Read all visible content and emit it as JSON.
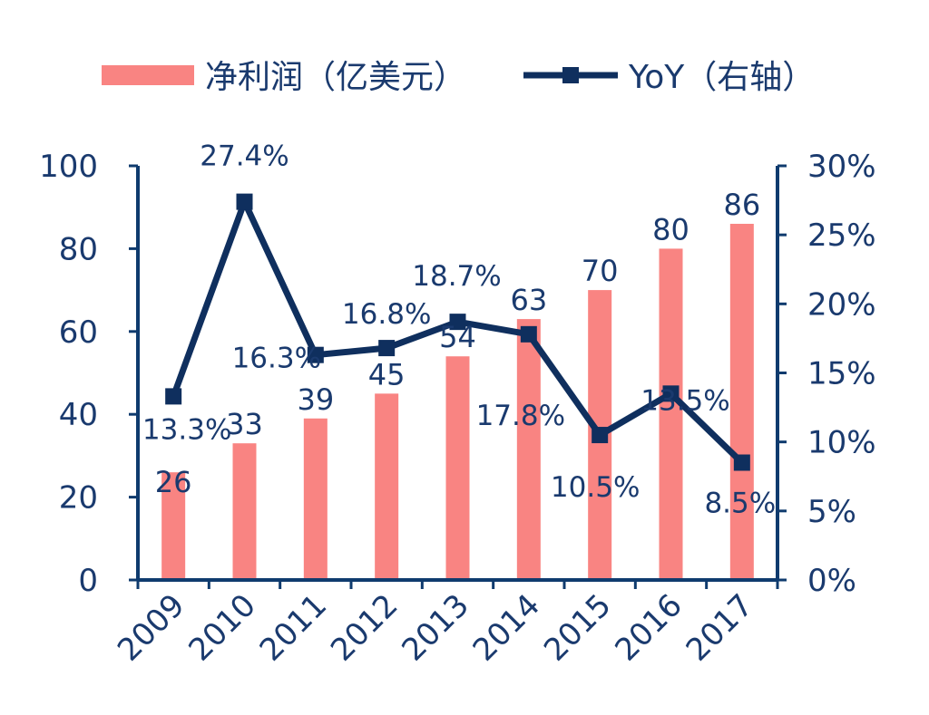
{
  "chart_data": {
    "type": "bar+line",
    "categories": [
      "2009",
      "2010",
      "2011",
      "2012",
      "2013",
      "2014",
      "2015",
      "2016",
      "2017"
    ],
    "series": [
      {
        "name": "净利润（亿美元）",
        "type": "bar",
        "axis": "left",
        "values": [
          26,
          33,
          39,
          45,
          54,
          63,
          70,
          80,
          86
        ],
        "labels": [
          "26",
          "33",
          "39",
          "45",
          "54",
          "63",
          "70",
          "80",
          "86"
        ]
      },
      {
        "name": "YoY（右轴）",
        "type": "line",
        "axis": "right",
        "values": [
          13.3,
          27.4,
          16.3,
          16.8,
          18.7,
          17.8,
          10.5,
          13.5,
          8.5
        ],
        "labels": [
          "13.3%",
          "27.4%",
          "16.3%",
          "16.8%",
          "18.7%",
          "17.8%",
          "10.5%",
          "13.5%",
          "8.5%"
        ]
      }
    ],
    "y_left": {
      "min": 0,
      "max": 100,
      "ticks": [
        "0",
        "20",
        "40",
        "60",
        "80",
        "100"
      ]
    },
    "y_right": {
      "min": 0,
      "max": 30,
      "ticks": [
        "0%",
        "5%",
        "10%",
        "15%",
        "20%",
        "25%",
        "30%"
      ]
    },
    "legend": {
      "position": "top",
      "items": [
        "净利润（亿美元）",
        "YoY（右轴）"
      ]
    },
    "grid": false,
    "colors": {
      "bar": "#f98482",
      "line": "#0f2f5e",
      "axis": "#0f3b6e",
      "text": "#1a3a6e"
    }
  }
}
